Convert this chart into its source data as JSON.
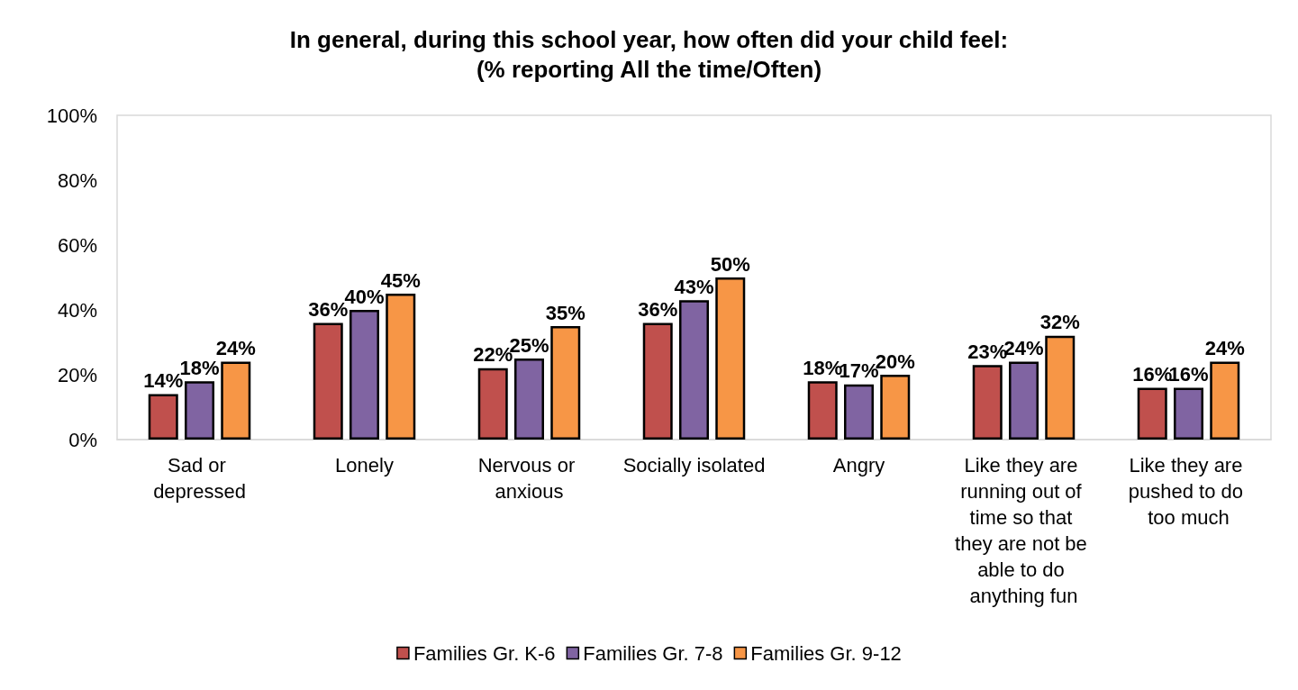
{
  "chart_data": {
    "type": "bar",
    "title": "In general, during this school year, how often did your child feel:\n(% reporting All the time/Often)",
    "categories": [
      "Sad or depressed",
      "Lonely",
      "Nervous or anxious",
      "Socially isolated",
      "Angry",
      "Like they are running out of time so that they are not be able to do anything fun",
      "Like they are pushed to do too much"
    ],
    "series": [
      {
        "name": "Families Gr. K-6",
        "color": "#c0504d",
        "values": [
          14,
          36,
          22,
          36,
          18,
          23,
          16
        ],
        "value_labels": [
          "14%",
          "36%",
          "22%",
          "36%",
          "18%",
          "23%",
          "16%"
        ]
      },
      {
        "name": "Families Gr. 7-8",
        "color": "#8064a2",
        "values": [
          18,
          40,
          25,
          43,
          17,
          24,
          16
        ],
        "value_labels": [
          "18%",
          "40%",
          "25%",
          "43%",
          "17%",
          "24%",
          "16%"
        ]
      },
      {
        "name": "Families Gr. 9-12",
        "color": "#f79646",
        "values": [
          24,
          45,
          35,
          50,
          20,
          32,
          24
        ],
        "value_labels": [
          "24%",
          "45%",
          "35%",
          "50%",
          "20%",
          "32%",
          "24%"
        ]
      }
    ],
    "ylim": [
      0,
      100
    ],
    "yticks": [
      {
        "value": 0,
        "label": "0%"
      },
      {
        "value": 20,
        "label": "20%"
      },
      {
        "value": 40,
        "label": "40%"
      },
      {
        "value": 60,
        "label": "60%"
      },
      {
        "value": 80,
        "label": "80%"
      },
      {
        "value": 100,
        "label": "100%"
      }
    ],
    "grid": false,
    "legend": "bottom"
  }
}
